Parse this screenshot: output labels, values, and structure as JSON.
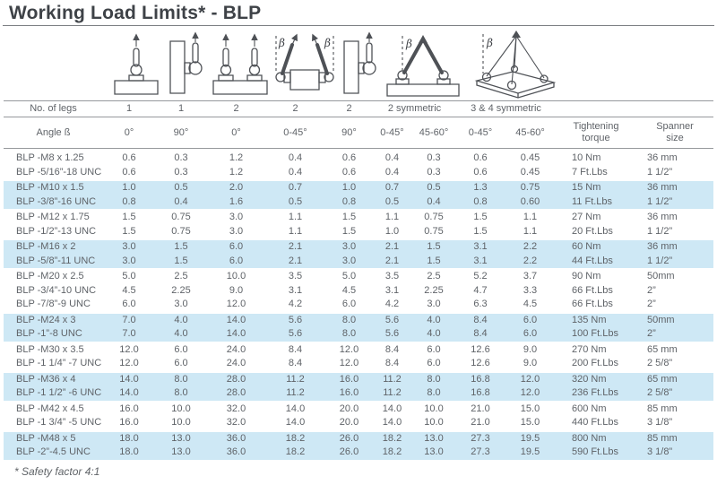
{
  "page": {
    "title": "Working Load Limits* - BLP",
    "footnote": "* Safety factor 4:1"
  },
  "symbols": {
    "beta": "β"
  },
  "colors": {
    "stripe": "#cee8f5",
    "text": "#5f6368",
    "title": "#3e4247",
    "rule": "#96999c"
  },
  "diagram_icons": [
    "sling-1-leg-0deg-icon",
    "sling-1-leg-90deg-icon",
    "sling-2-leg-0deg-icon",
    "sling-2-leg-angled-icon",
    "sling-2-leg-90deg-icon",
    "sling-2-symmetric-icon",
    "sling-3-4-symmetric-icon"
  ],
  "header": {
    "legs_label": "No. of legs",
    "legs": [
      "1",
      "1",
      "2",
      "2",
      "2"
    ],
    "legs_sym2": "2 symmetric",
    "legs_sym34": "3 & 4 symmetric",
    "angle_label": "Angle ß",
    "angles": [
      "0°",
      "90°",
      "0°",
      "0-45°",
      "90°",
      "0-45°",
      "45-60°",
      "0-45°",
      "45-60°"
    ],
    "torque_header": {
      "line1": "Tightening",
      "line2": "torque"
    },
    "spanner_header": {
      "line1": "Spanner",
      "line2": "size"
    }
  },
  "table": {
    "groups": [
      {
        "shaded": false,
        "rows": [
          {
            "label": "BLP -M8 x 1.25",
            "values": [
              "0.6",
              "0.3",
              "1.2",
              "0.4",
              "0.6",
              "0.4",
              "0.3",
              "0.6",
              "0.45"
            ],
            "torque": "10 Nm",
            "spanner": "36 mm"
          },
          {
            "label": "BLP -5/16”-18 UNC",
            "values": [
              "0.6",
              "0.3",
              "1.2",
              "0.4",
              "0.6",
              "0.4",
              "0.3",
              "0.6",
              "0.45"
            ],
            "torque": "7 Ft.Lbs",
            "spanner": "1 1/2”"
          }
        ]
      },
      {
        "shaded": true,
        "rows": [
          {
            "label": "BLP -M10 x 1.5",
            "values": [
              "1.0",
              "0.5",
              "2.0",
              "0.7",
              "1.0",
              "0.7",
              "0.5",
              "1.3",
              "0.75"
            ],
            "torque": "15 Nm",
            "spanner": "36 mm"
          },
          {
            "label": "BLP -3/8”-16 UNC",
            "values": [
              "0.8",
              "0.4",
              "1.6",
              "0.5",
              "0.8",
              "0.5",
              "0.4",
              "0.8",
              "0.60"
            ],
            "torque": "11 Ft.Lbs",
            "spanner": "1 1/2”"
          }
        ]
      },
      {
        "shaded": false,
        "rows": [
          {
            "label": "BLP -M12 x 1.75",
            "values": [
              "1.5",
              "0.75",
              "3.0",
              "1.1",
              "1.5",
              "1.1",
              "0.75",
              "1.5",
              "1.1"
            ],
            "torque": "27 Nm",
            "spanner": "36 mm"
          },
          {
            "label": "BLP -1/2”-13 UNC",
            "values": [
              "1.5",
              "0.75",
              "3.0",
              "1.1",
              "1.5",
              "1.0",
              "0.75",
              "1.5",
              "1.1"
            ],
            "torque": "20 Ft.Lbs",
            "spanner": "1 1/2”"
          }
        ]
      },
      {
        "shaded": true,
        "rows": [
          {
            "label": "BLP -M16 x 2",
            "values": [
              "3.0",
              "1.5",
              "6.0",
              "2.1",
              "3.0",
              "2.1",
              "1.5",
              "3.1",
              "2.2"
            ],
            "torque": "60 Nm",
            "spanner": "36 mm"
          },
          {
            "label": "BLP -5/8”-11 UNC",
            "values": [
              "3.0",
              "1.5",
              "6.0",
              "2.1",
              "3.0",
              "2.1",
              "1.5",
              "3.1",
              "2.2"
            ],
            "torque": "44 Ft.Lbs",
            "spanner": "1 1/2”"
          }
        ]
      },
      {
        "shaded": false,
        "rows": [
          {
            "label": "BLP -M20 x 2.5",
            "values": [
              "5.0",
              "2.5",
              "10.0",
              "3.5",
              "5.0",
              "3.5",
              "2.5",
              "5.2",
              "3.7"
            ],
            "torque": "90 Nm",
            "spanner": "50mm"
          },
          {
            "label": "BLP -3/4”-10 UNC",
            "values": [
              "4.5",
              "2.25",
              "9.0",
              "3.1",
              "4.5",
              "3.1",
              "2.25",
              "4.7",
              "3.3"
            ],
            "torque": "66 Ft.Lbs",
            "spanner": "2”"
          },
          {
            "label": "BLP -7/8”-9 UNC",
            "values": [
              "6.0",
              "3.0",
              "12.0",
              "4.2",
              "6.0",
              "4.2",
              "3.0",
              "6.3",
              "4.5"
            ],
            "torque": "66 Ft.Lbs",
            "spanner": "2”"
          }
        ]
      },
      {
        "shaded": true,
        "rows": [
          {
            "label": "BLP -M24 x 3",
            "values": [
              "7.0",
              "4.0",
              "14.0",
              "5.6",
              "8.0",
              "5.6",
              "4.0",
              "8.4",
              "6.0"
            ],
            "torque": "135 Nm",
            "spanner": "50mm"
          },
          {
            "label": "BLP -1”-8 UNC",
            "values": [
              "7.0",
              "4.0",
              "14.0",
              "5.6",
              "8.0",
              "5.6",
              "4.0",
              "8.4",
              "6.0"
            ],
            "torque": "100 Ft.Lbs",
            "spanner": "2”"
          }
        ]
      },
      {
        "shaded": false,
        "rows": [
          {
            "label": "BLP -M30 x 3.5",
            "values": [
              "12.0",
              "6.0",
              "24.0",
              "8.4",
              "12.0",
              "8.4",
              "6.0",
              "12.6",
              "9.0"
            ],
            "torque": "270 Nm",
            "spanner": "65 mm"
          },
          {
            "label": "BLP -1 1/4” -7 UNC",
            "values": [
              "12.0",
              "6.0",
              "24.0",
              "8.4",
              "12.0",
              "8.4",
              "6.0",
              "12.6",
              "9.0"
            ],
            "torque": "200 Ft.Lbs",
            "spanner": "2 5/8”"
          }
        ]
      },
      {
        "shaded": true,
        "rows": [
          {
            "label": "BLP -M36 x 4",
            "values": [
              "14.0",
              "8.0",
              "28.0",
              "11.2",
              "16.0",
              "11.2",
              "8.0",
              "16.8",
              "12.0"
            ],
            "torque": "320 Nm",
            "spanner": "65 mm"
          },
          {
            "label": "BLP -1 1/2” -6 UNC",
            "values": [
              "14.0",
              "8.0",
              "28.0",
              "11.2",
              "16.0",
              "11.2",
              "8.0",
              "16.8",
              "12.0"
            ],
            "torque": "236 Ft.Lbs",
            "spanner": "2 5/8”"
          }
        ]
      },
      {
        "shaded": false,
        "rows": [
          {
            "label": "BLP -M42 x 4.5",
            "values": [
              "16.0",
              "10.0",
              "32.0",
              "14.0",
              "20.0",
              "14.0",
              "10.0",
              "21.0",
              "15.0"
            ],
            "torque": "600 Nm",
            "spanner": "85 mm"
          },
          {
            "label": "BLP -1 3/4” -5 UNC",
            "values": [
              "16.0",
              "10.0",
              "32.0",
              "14.0",
              "20.0",
              "14.0",
              "10.0",
              "21.0",
              "15.0"
            ],
            "torque": "440 Ft.Lbs",
            "spanner": "3 1/8”"
          }
        ]
      },
      {
        "shaded": true,
        "rows": [
          {
            "label": "BLP -M48 x 5",
            "values": [
              "18.0",
              "13.0",
              "36.0",
              "18.2",
              "26.0",
              "18.2",
              "13.0",
              "27.3",
              "19.5"
            ],
            "torque": "800 Nm",
            "spanner": "85 mm"
          },
          {
            "label": "BLP -2”-4.5 UNC",
            "values": [
              "18.0",
              "13.0",
              "36.0",
              "18.2",
              "26.0",
              "18.2",
              "13.0",
              "27.3",
              "19.5"
            ],
            "torque": "590 Ft.Lbs",
            "spanner": "3 1/8”"
          }
        ]
      }
    ]
  }
}
